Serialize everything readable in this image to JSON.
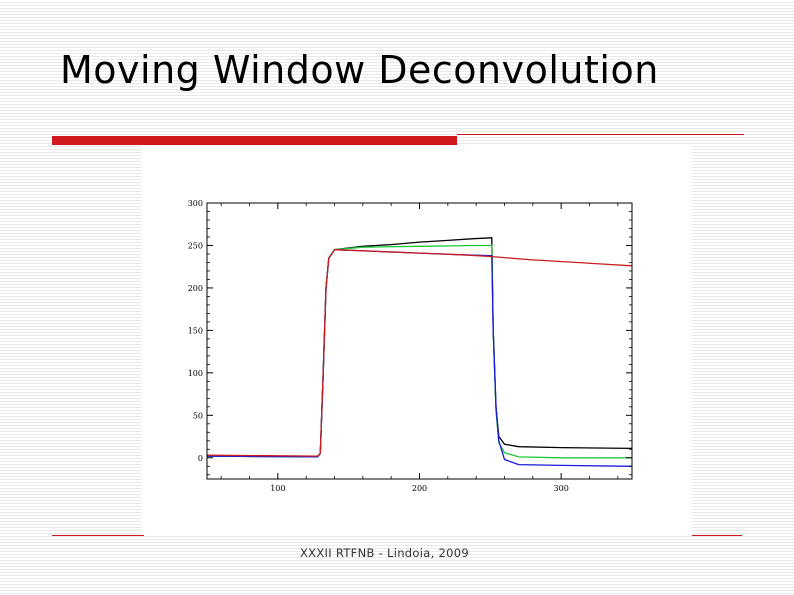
{
  "slide": {
    "title": "Moving Window Deconvolution",
    "footer": "XXXII RTFNB - Lindoia, 2009"
  },
  "colors": {
    "accent": "#d0191c"
  },
  "chart_data": {
    "type": "line",
    "title": "",
    "xlabel": "",
    "ylabel": "",
    "xlim": [
      50,
      350
    ],
    "ylim": [
      -25,
      300
    ],
    "xticks": [
      100,
      200,
      300
    ],
    "yticks": [
      0,
      50,
      100,
      150,
      200,
      250,
      300
    ],
    "grid": false,
    "series": [
      {
        "color": "#000000",
        "points": [
          [
            50,
            2
          ],
          [
            128,
            1
          ],
          [
            130,
            5
          ],
          [
            132,
            100
          ],
          [
            134,
            200
          ],
          [
            136,
            235
          ],
          [
            140,
            245
          ],
          [
            160,
            249
          ],
          [
            180,
            251
          ],
          [
            200,
            254
          ],
          [
            220,
            256
          ],
          [
            238,
            258
          ],
          [
            251,
            259
          ],
          [
            252,
            150
          ],
          [
            254,
            60
          ],
          [
            256,
            25
          ],
          [
            260,
            16
          ],
          [
            270,
            13
          ],
          [
            300,
            12
          ],
          [
            350,
            11
          ]
        ]
      },
      {
        "color": "#1ec83c",
        "points": [
          [
            50,
            2
          ],
          [
            128,
            1
          ],
          [
            130,
            5
          ],
          [
            132,
            100
          ],
          [
            134,
            200
          ],
          [
            136,
            235
          ],
          [
            140,
            245
          ],
          [
            160,
            248
          ],
          [
            200,
            249
          ],
          [
            240,
            250
          ],
          [
            251,
            250
          ],
          [
            252,
            150
          ],
          [
            254,
            55
          ],
          [
            256,
            18
          ],
          [
            260,
            6
          ],
          [
            270,
            1
          ],
          [
            300,
            0
          ],
          [
            350,
            0
          ]
        ]
      },
      {
        "color": "#1a1adc",
        "points": [
          [
            50,
            2
          ],
          [
            128,
            1
          ],
          [
            130,
            5
          ],
          [
            132,
            100
          ],
          [
            134,
            200
          ],
          [
            136,
            235
          ],
          [
            140,
            245
          ],
          [
            170,
            243
          ],
          [
            200,
            241
          ],
          [
            230,
            239
          ],
          [
            250,
            238
          ],
          [
            251,
            238
          ],
          [
            252,
            150
          ],
          [
            254,
            60
          ],
          [
            256,
            20
          ],
          [
            260,
            -2
          ],
          [
            270,
            -8
          ],
          [
            300,
            -9
          ],
          [
            350,
            -10
          ]
        ]
      },
      {
        "color": "#c81e1e",
        "points": [
          [
            50,
            3
          ],
          [
            128,
            2
          ],
          [
            130,
            5
          ],
          [
            132,
            100
          ],
          [
            134,
            200
          ],
          [
            136,
            235
          ],
          [
            140,
            245
          ],
          [
            170,
            243
          ],
          [
            200,
            241
          ],
          [
            230,
            239
          ],
          [
            250,
            237
          ],
          [
            280,
            233
          ],
          [
            310,
            230
          ],
          [
            330,
            228
          ],
          [
            350,
            226
          ]
        ]
      }
    ]
  }
}
